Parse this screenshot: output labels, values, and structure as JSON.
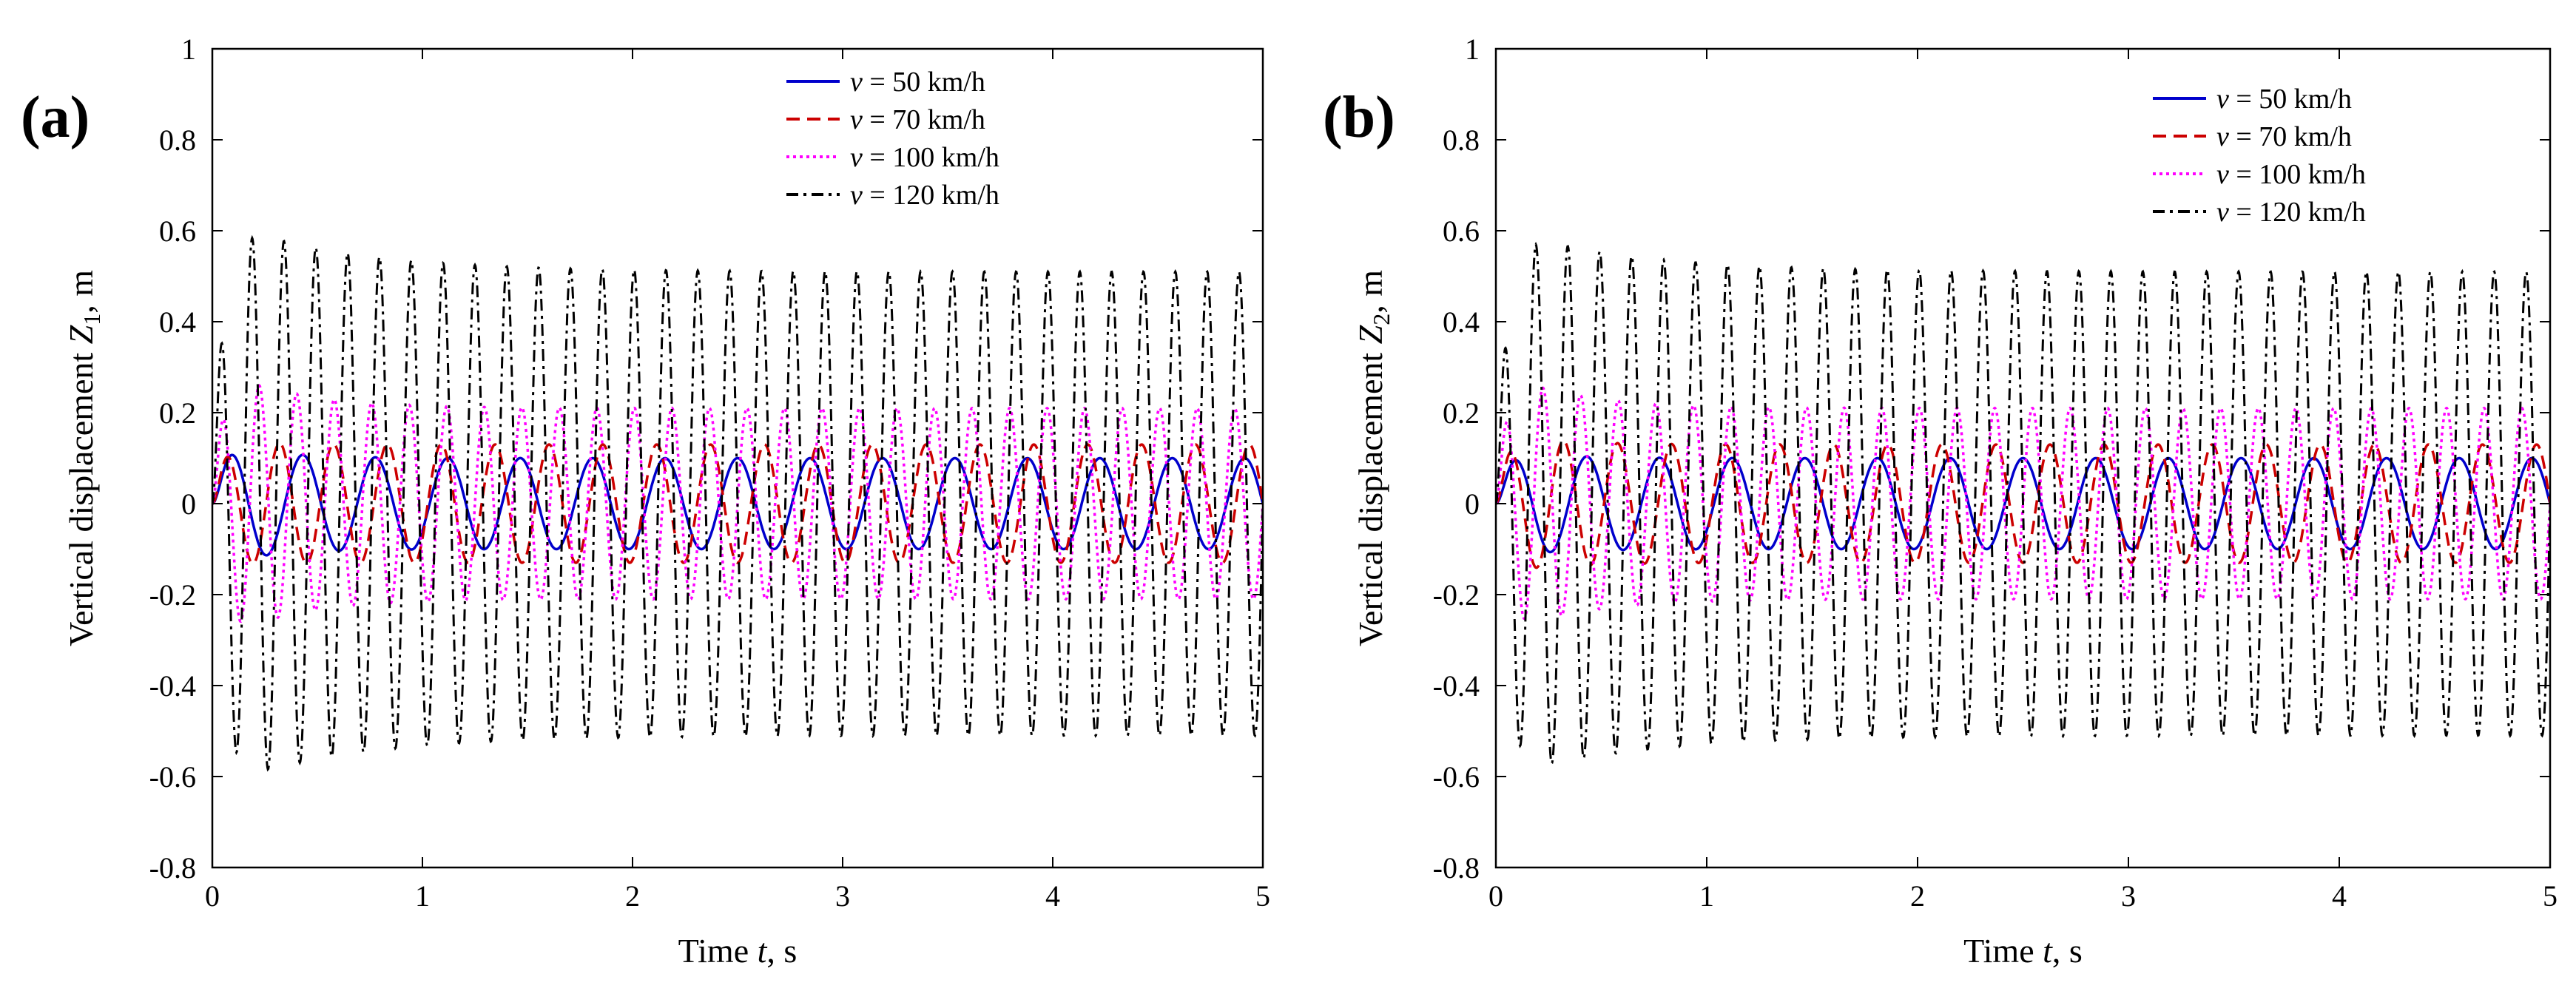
{
  "chart_data": [
    {
      "type": "line",
      "panel_label": "(a)",
      "xlabel_prefix": "Time ",
      "xlabel_var": "t",
      "xlabel_suffix": ", s",
      "ylabel_prefix": "Vertical displacement ",
      "ylabel_var": "Z",
      "ylabel_sub": "1",
      "ylabel_suffix": ", m",
      "xlim": [
        0,
        5
      ],
      "ylim": [
        -0.8,
        1
      ],
      "xticks": [
        "0",
        "1",
        "2",
        "3",
        "4",
        "5"
      ],
      "yticks": [
        "-0.8",
        "-0.6",
        "-0.4",
        "-0.2",
        "0",
        "0.2",
        "0.4",
        "0.6",
        "0.8",
        "1"
      ],
      "legend_position": "top-right",
      "series": [
        {
          "name": "v = 50 km/h",
          "var": "v",
          "label": " = 50 km/h",
          "color": "#0000cc",
          "dash": "solid",
          "steady_amplitude": 0.1,
          "frequency_hz": 2.9,
          "peak_amplitude": 0.14,
          "transient_tau_s": 0.25
        },
        {
          "name": "v = 70 km/h",
          "var": "v",
          "label": " = 70 km/h",
          "color": "#cc0000",
          "dash": "dashed",
          "steady_amplitude": 0.13,
          "frequency_hz": 3.9,
          "peak_amplitude": 0.14,
          "transient_tau_s": 0.25
        },
        {
          "name": "v = 100 km/h",
          "var": "v",
          "label": " = 100 km/h",
          "color": "#ff00ff",
          "dash": "dotted",
          "steady_amplitude": 0.21,
          "frequency_hz": 5.6,
          "peak_amplitude": 0.31,
          "transient_tau_s": 0.35
        },
        {
          "name": "v = 120 km/h",
          "var": "v",
          "label": " = 120 km/h",
          "color": "#000000",
          "dash": "dashdot",
          "steady_amplitude": 0.51,
          "frequency_hz": 6.6,
          "peak_amplitude": 0.63,
          "transient_tau_s": 0.6
        }
      ]
    },
    {
      "type": "line",
      "panel_label": "(b)",
      "xlabel_prefix": "Time ",
      "xlabel_var": "t",
      "xlabel_suffix": ", s",
      "ylabel_prefix": "Vertical displacement ",
      "ylabel_var": "Z",
      "ylabel_sub": "2",
      "ylabel_suffix": ", m",
      "xlim": [
        0,
        5
      ],
      "ylim": [
        -0.8,
        1
      ],
      "xticks": [
        "0",
        "1",
        "2",
        "3",
        "4",
        "5"
      ],
      "yticks": [
        "-0.8",
        "-0.6",
        "-0.4",
        "-0.2",
        "0",
        "0.2",
        "0.4",
        "0.6",
        "0.8",
        "1"
      ],
      "legend_position": "top-right",
      "series": [
        {
          "name": "v = 50 km/h",
          "var": "v",
          "label": " = 50 km/h",
          "color": "#0000cc",
          "dash": "solid",
          "steady_amplitude": 0.1,
          "frequency_hz": 2.9,
          "peak_amplitude": 0.12,
          "transient_tau_s": 0.25
        },
        {
          "name": "v = 70 km/h",
          "var": "v",
          "label": " = 70 km/h",
          "color": "#cc0000",
          "dash": "dashed",
          "steady_amplitude": 0.13,
          "frequency_hz": 3.9,
          "peak_amplitude": 0.16,
          "transient_tau_s": 0.25
        },
        {
          "name": "v = 100 km/h",
          "var": "v",
          "label": " = 100 km/h",
          "color": "#ff00ff",
          "dash": "dotted",
          "steady_amplitude": 0.21,
          "frequency_hz": 5.6,
          "peak_amplitude": 0.3,
          "transient_tau_s": 0.35
        },
        {
          "name": "v = 120 km/h",
          "var": "v",
          "label": " = 120 km/h",
          "color": "#000000",
          "dash": "dashdot",
          "steady_amplitude": 0.51,
          "frequency_hz": 6.6,
          "peak_amplitude": 0.61,
          "transient_tau_s": 0.6
        }
      ]
    }
  ]
}
